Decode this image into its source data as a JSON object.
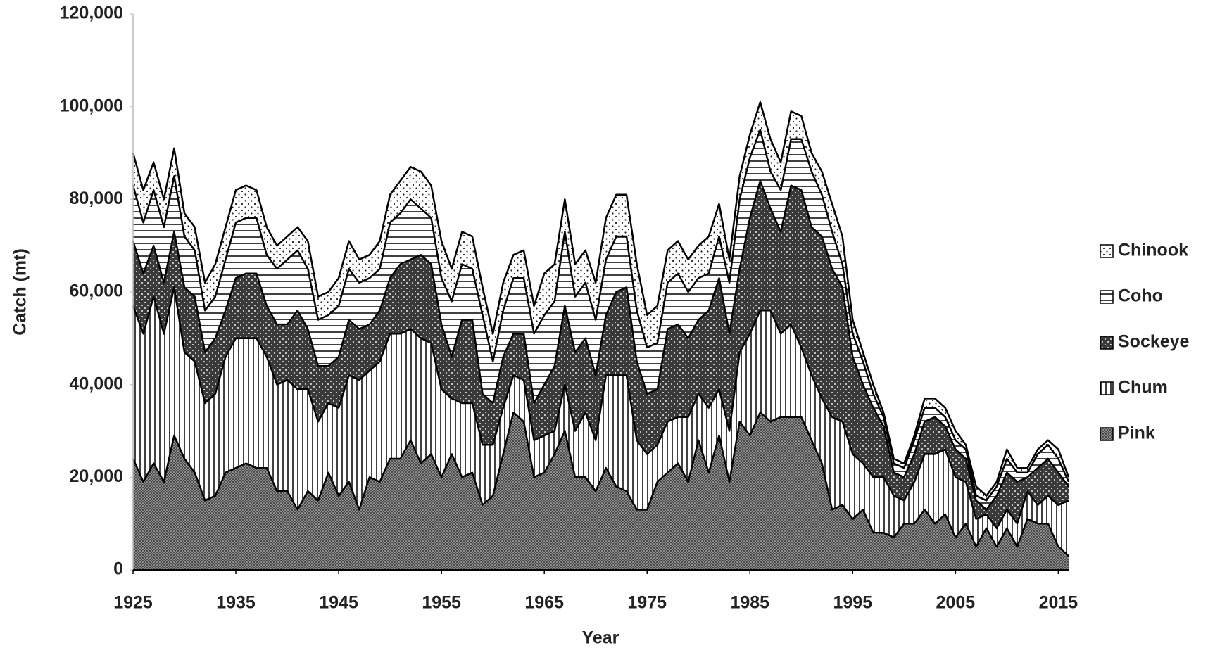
{
  "chart_data": {
    "type": "stacked-area",
    "x_label": "Year",
    "y_label": "Catch (mt)",
    "x": [
      1925,
      1926,
      1927,
      1928,
      1929,
      1930,
      1931,
      1932,
      1933,
      1934,
      1935,
      1936,
      1937,
      1938,
      1939,
      1940,
      1941,
      1942,
      1943,
      1944,
      1945,
      1946,
      1947,
      1948,
      1949,
      1950,
      1951,
      1952,
      1953,
      1954,
      1955,
      1956,
      1957,
      1958,
      1959,
      1960,
      1961,
      1962,
      1963,
      1964,
      1965,
      1966,
      1967,
      1968,
      1969,
      1970,
      1971,
      1972,
      1973,
      1974,
      1975,
      1976,
      1977,
      1978,
      1979,
      1980,
      1981,
      1982,
      1983,
      1984,
      1985,
      1986,
      1987,
      1988,
      1989,
      1990,
      1991,
      1992,
      1993,
      1994,
      1995,
      1996,
      1997,
      1998,
      1999,
      2000,
      2001,
      2002,
      2003,
      2004,
      2005,
      2006,
      2007,
      2008,
      2009,
      2010,
      2011,
      2012,
      2013,
      2014,
      2015,
      2016
    ],
    "xlim": [
      1925,
      2016
    ],
    "xticks": [
      1925,
      1935,
      1945,
      1955,
      1965,
      1975,
      1985,
      1995,
      2005,
      2015
    ],
    "ylim": [
      0,
      120000
    ],
    "yticks": [
      0,
      {
        "value": 20000,
        "label": "20,000"
      },
      {
        "value": 40000,
        "label": "40,000"
      },
      {
        "value": 60000,
        "label": "60,000"
      },
      {
        "value": 80000,
        "label": "80,000"
      },
      {
        "value": 100000,
        "label": "100,000"
      },
      {
        "value": 120000,
        "label": "120,000"
      }
    ],
    "series": [
      {
        "name": "Pink",
        "pattern": "dense-dots",
        "values": [
          24000,
          19000,
          23000,
          19000,
          29000,
          24000,
          21000,
          15000,
          16000,
          21000,
          22000,
          23000,
          22000,
          22000,
          17000,
          17000,
          13000,
          17000,
          15000,
          21000,
          16000,
          19000,
          13000,
          20000,
          19000,
          24000,
          24000,
          28000,
          23000,
          25000,
          20000,
          25000,
          20000,
          21000,
          14000,
          16000,
          25000,
          34000,
          32000,
          20000,
          21000,
          25000,
          30000,
          20000,
          20000,
          17000,
          22000,
          18000,
          17000,
          13000,
          13000,
          19000,
          21000,
          23000,
          19000,
          28000,
          21000,
          29000,
          19000,
          32000,
          29000,
          34000,
          32000,
          33000,
          33000,
          33000,
          28000,
          23000,
          13000,
          14000,
          11000,
          13000,
          8000,
          8000,
          7000,
          10000,
          10000,
          13000,
          10000,
          12000,
          7000,
          10000,
          5000,
          9000,
          5000,
          9000,
          5000,
          11000,
          10000,
          10000,
          5000,
          3000
        ]
      },
      {
        "name": "Chum",
        "pattern": "vertical-lines",
        "values": [
          33000,
          32000,
          36000,
          32000,
          32000,
          23000,
          24000,
          21000,
          22000,
          25000,
          28000,
          27000,
          28000,
          24000,
          23000,
          24000,
          26000,
          22000,
          17000,
          15000,
          19000,
          23000,
          28000,
          23000,
          26000,
          27000,
          27000,
          24000,
          27000,
          24000,
          19000,
          12000,
          16000,
          15000,
          13000,
          11000,
          10000,
          8000,
          9000,
          8000,
          8000,
          5000,
          10000,
          10000,
          14000,
          11000,
          20000,
          24000,
          25000,
          15000,
          12000,
          8000,
          11000,
          10000,
          14000,
          10000,
          14000,
          10000,
          11000,
          15000,
          22000,
          22000,
          24000,
          18000,
          20000,
          15000,
          14000,
          14000,
          20000,
          18000,
          14000,
          10000,
          12000,
          12000,
          9000,
          5000,
          9000,
          12000,
          15000,
          14000,
          13000,
          9000,
          6000,
          3000,
          4000,
          4000,
          5000,
          6000,
          4000,
          6000,
          9000,
          12000
        ]
      },
      {
        "name": "Sockeye",
        "pattern": "dark-dots",
        "values": [
          14000,
          13000,
          11000,
          11000,
          12000,
          14000,
          14000,
          11000,
          12000,
          10000,
          13000,
          14000,
          14000,
          11000,
          13000,
          12000,
          17000,
          13000,
          12000,
          8000,
          11000,
          12000,
          11000,
          10000,
          11000,
          12000,
          15000,
          15000,
          18000,
          17000,
          14000,
          9000,
          18000,
          18000,
          11000,
          9000,
          11000,
          9000,
          10000,
          8000,
          11000,
          14000,
          17000,
          17000,
          16000,
          14000,
          13000,
          18000,
          19000,
          17000,
          13000,
          12000,
          20000,
          20000,
          17000,
          16000,
          21000,
          24000,
          21000,
          18000,
          25000,
          28000,
          22000,
          22000,
          30000,
          34000,
          32000,
          35000,
          32000,
          29000,
          21000,
          17000,
          15000,
          11000,
          5000,
          5000,
          6000,
          7000,
          8000,
          5000,
          6000,
          5000,
          4000,
          1000,
          7000,
          8000,
          9000,
          3000,
          8000,
          8000,
          7000,
          3000
        ]
      },
      {
        "name": "Coho",
        "pattern": "horizontal-lines",
        "values": [
          12000,
          11000,
          12000,
          12000,
          12000,
          11000,
          10000,
          9000,
          9000,
          11000,
          12000,
          12000,
          12000,
          11000,
          12000,
          14000,
          13000,
          13000,
          10000,
          11000,
          11000,
          11000,
          10000,
          10000,
          9000,
          12000,
          11000,
          13000,
          10000,
          10000,
          10000,
          12000,
          12000,
          11000,
          17000,
          9000,
          10000,
          12000,
          12000,
          15000,
          15000,
          14000,
          16000,
          12000,
          12000,
          12000,
          12000,
          12000,
          11000,
          11000,
          10000,
          10000,
          10000,
          11000,
          10000,
          9000,
          8000,
          9000,
          11000,
          15000,
          13000,
          11000,
          8000,
          9000,
          10000,
          11000,
          12000,
          9000,
          8000,
          5000,
          5000,
          5000,
          3000,
          2000,
          2000,
          2000,
          3000,
          3000,
          2000,
          2000,
          2000,
          2000,
          1000,
          2000,
          2000,
          3000,
          2000,
          1000,
          3000,
          3000,
          3000,
          1000
        ]
      },
      {
        "name": "Chinook",
        "pattern": "sparse-dots",
        "values": [
          7000,
          7000,
          6000,
          6000,
          6000,
          5000,
          5000,
          6000,
          7000,
          7000,
          7000,
          7000,
          6000,
          6000,
          5000,
          5000,
          5000,
          6000,
          5000,
          5000,
          6000,
          6000,
          5000,
          5000,
          6000,
          6000,
          7000,
          7000,
          8000,
          7000,
          8000,
          7000,
          7000,
          7000,
          6000,
          6000,
          6000,
          5000,
          6000,
          6000,
          9000,
          8000,
          7000,
          7000,
          7000,
          8000,
          9000,
          9000,
          9000,
          10000,
          7000,
          8000,
          7000,
          7000,
          7000,
          7000,
          8000,
          7000,
          5000,
          5000,
          5000,
          6000,
          7000,
          6000,
          6000,
          5000,
          4000,
          5000,
          6000,
          6000,
          3000,
          2000,
          2000,
          1000,
          1000,
          1000,
          1000,
          2000,
          2000,
          2000,
          2000,
          1000,
          2000,
          1000,
          1000,
          2000,
          1000,
          1000,
          1000,
          1000,
          2000,
          1000
        ]
      }
    ]
  }
}
